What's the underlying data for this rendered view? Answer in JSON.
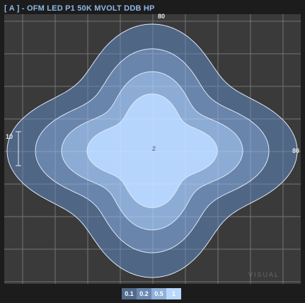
{
  "header": {
    "title": "[ A ] - OFM LED P1 50K MVOLT DDB HP"
  },
  "plot": {
    "top_label": "80",
    "right_label": "80",
    "left_label": "10",
    "center_label": "2",
    "watermark": "VISUAL"
  },
  "legend": {
    "items": [
      {
        "label": "0.1",
        "bg": "#526a8c",
        "fg": "#ffffff"
      },
      {
        "label": "0.2",
        "bg": "#6c88b0",
        "fg": "#ffffff"
      },
      {
        "label": "0.5",
        "bg": "#8fb0d8",
        "fg": "#ffffff"
      },
      {
        "label": "1",
        "bg": "#b8d8ff",
        "fg": "#ffffff"
      }
    ]
  },
  "contours": [
    {
      "level": "0.1",
      "fill": "#526a8c"
    },
    {
      "level": "0.2",
      "fill": "#6c88b0"
    },
    {
      "level": "0.5",
      "fill": "#8fb0d8"
    },
    {
      "level": "1",
      "fill": "#b8d8ff"
    }
  ],
  "colors": {
    "background": "#1c1c1c",
    "plot_bg": "#3a3a3a",
    "grid": "#555555",
    "title": "#8fb8e8"
  }
}
